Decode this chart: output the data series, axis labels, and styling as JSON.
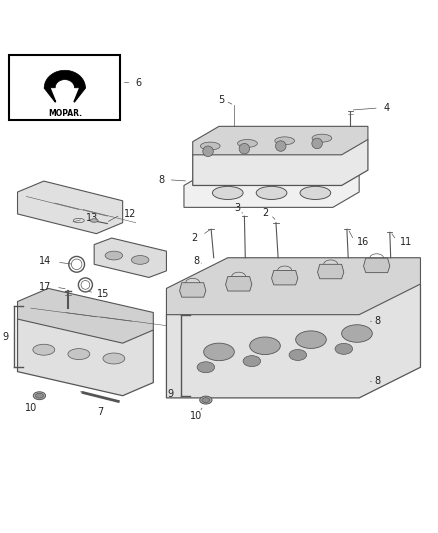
{
  "bg_color": "#ffffff",
  "line_color": "#555555",
  "label_color": "#222222",
  "fig_width": 4.38,
  "fig_height": 5.33,
  "dpi": 100
}
